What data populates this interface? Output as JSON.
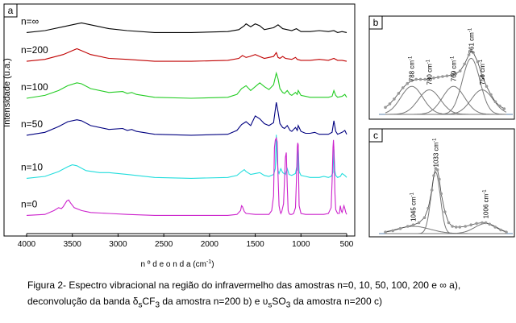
{
  "panels": [
    {
      "label": "a",
      "chart_data": {
        "type": "line",
        "title": "",
        "xlabel": "n º d e  o n d a  (cm",
        "xlabel_exp": "-1",
        "xlabel_end": ")",
        "ylabel": "Intensidade (u.a.)",
        "xlim": [
          4000,
          500
        ],
        "xticks": [
          4000,
          3500,
          3000,
          2500,
          2000,
          1500,
          1000,
          500
        ],
        "series": [
          {
            "name": "n=∞",
            "color": "#000000",
            "offset": 0.92,
            "x": [
              4000,
              3800,
              3600,
              3450,
              3400,
              3300,
              3100,
              2900,
              2600,
              2200,
              1800,
              1680,
              1620,
              1600,
              1550,
              1500,
              1450,
              1400,
              1300,
              1250,
              1200,
              1150,
              1100,
              1050,
              1000,
              900,
              800,
              700,
              640,
              600,
              550,
              500
            ],
            "y": [
              0.0,
              0.02,
              0.06,
              0.09,
              0.1,
              0.08,
              0.04,
              0.02,
              0.0,
              0.0,
              0.01,
              0.03,
              0.07,
              0.09,
              0.06,
              0.09,
              0.07,
              0.03,
              0.05,
              0.08,
              0.04,
              0.03,
              0.02,
              0.04,
              0.01,
              0.01,
              0.02,
              0.01,
              0.02,
              0.0,
              0.01,
              0.0
            ]
          },
          {
            "name": "n=200",
            "color": "#c00000",
            "offset": 0.78,
            "x": [
              4000,
              3800,
              3600,
              3500,
              3450,
              3400,
              3300,
              3100,
              2900,
              2600,
              2200,
              1800,
              1680,
              1640,
              1600,
              1560,
              1500,
              1450,
              1400,
              1350,
              1300,
              1270,
              1250,
              1230,
              1200,
              1170,
              1100,
              1060,
              1040,
              1000,
              900,
              800,
              700,
              640,
              600,
              550,
              500
            ],
            "y": [
              0.0,
              0.02,
              0.07,
              0.11,
              0.13,
              0.11,
              0.07,
              0.03,
              0.02,
              0.0,
              0.0,
              0.01,
              0.03,
              0.06,
              0.04,
              0.05,
              0.07,
              0.05,
              0.03,
              0.04,
              0.05,
              0.09,
              0.04,
              0.03,
              0.05,
              0.03,
              0.02,
              0.04,
              0.02,
              0.01,
              0.01,
              0.02,
              0.01,
              0.03,
              0.01,
              0.01,
              0.0
            ]
          },
          {
            "name": "n=100",
            "color": "#22cc22",
            "offset": 0.6,
            "x": [
              4000,
              3800,
              3650,
              3550,
              3450,
              3400,
              3300,
              3100,
              2950,
              2900,
              2850,
              2800,
              2600,
              2200,
              1800,
              1700,
              1650,
              1600,
              1550,
              1500,
              1450,
              1400,
              1350,
              1300,
              1270,
              1250,
              1230,
              1200,
              1180,
              1150,
              1120,
              1100,
              1060,
              1040,
              1030,
              1000,
              950,
              900,
              850,
              800,
              700,
              660,
              640,
              620,
              600,
              550,
              520,
              500
            ],
            "y": [
              0.0,
              0.03,
              0.08,
              0.13,
              0.16,
              0.15,
              0.1,
              0.06,
              0.07,
              0.05,
              0.06,
              0.04,
              0.01,
              0.0,
              0.01,
              0.04,
              0.1,
              0.13,
              0.08,
              0.12,
              0.16,
              0.12,
              0.09,
              0.14,
              0.26,
              0.2,
              0.1,
              0.06,
              0.05,
              0.08,
              0.04,
              0.03,
              0.06,
              0.04,
              0.08,
              0.03,
              0.02,
              0.01,
              0.01,
              0.01,
              0.01,
              0.02,
              0.08,
              0.03,
              0.01,
              0.02,
              0.04,
              0.01
            ]
          },
          {
            "name": "n=50",
            "color": "#000080",
            "offset": 0.42,
            "x": [
              4000,
              3800,
              3650,
              3550,
              3450,
              3400,
              3300,
              3100,
              2950,
              2900,
              2850,
              2800,
              2600,
              2200,
              1800,
              1700,
              1650,
              1600,
              1550,
              1500,
              1450,
              1400,
              1350,
              1300,
              1270,
              1250,
              1230,
              1200,
              1180,
              1150,
              1120,
              1100,
              1060,
              1040,
              1030,
              1000,
              950,
              900,
              850,
              800,
              700,
              660,
              640,
              620,
              600,
              550,
              520,
              500
            ],
            "y": [
              0.0,
              0.03,
              0.09,
              0.14,
              0.16,
              0.15,
              0.1,
              0.06,
              0.07,
              0.05,
              0.06,
              0.04,
              0.01,
              0.0,
              0.01,
              0.05,
              0.11,
              0.14,
              0.1,
              0.2,
              0.17,
              0.12,
              0.1,
              0.13,
              0.34,
              0.24,
              0.12,
              0.08,
              0.07,
              0.1,
              0.05,
              0.04,
              0.08,
              0.05,
              0.1,
              0.04,
              0.02,
              0.02,
              0.03,
              0.01,
              0.01,
              0.03,
              0.15,
              0.04,
              0.01,
              0.03,
              0.05,
              0.01
            ]
          },
          {
            "name": "n=10",
            "color": "#22dddd",
            "offset": 0.21,
            "x": [
              4000,
              3800,
              3650,
              3550,
              3500,
              3450,
              3350,
              3200,
              3100,
              3000,
              2900,
              2600,
              2200,
              1800,
              1700,
              1650,
              1620,
              1600,
              1550,
              1500,
              1450,
              1400,
              1350,
              1300,
              1280,
              1270,
              1260,
              1250,
              1240,
              1220,
              1200,
              1170,
              1150,
              1130,
              1100,
              1060,
              1050,
              1040,
              1030,
              1020,
              1000,
              950,
              900,
              850,
              800,
              750,
              700,
              670,
              650,
              640,
              630,
              620,
              600,
              570,
              550,
              520,
              500
            ],
            "y": [
              0.0,
              0.02,
              0.07,
              0.12,
              0.14,
              0.13,
              0.08,
              0.06,
              0.06,
              0.05,
              0.04,
              0.01,
              0.0,
              0.01,
              0.03,
              0.07,
              0.09,
              0.07,
              0.04,
              0.05,
              0.06,
              0.03,
              0.02,
              0.04,
              0.1,
              0.45,
              0.18,
              0.08,
              0.05,
              0.1,
              0.06,
              0.04,
              0.1,
              0.04,
              0.03,
              0.05,
              0.1,
              0.08,
              0.32,
              0.07,
              0.03,
              0.02,
              0.01,
              0.01,
              0.01,
              0.02,
              0.01,
              0.02,
              0.06,
              0.3,
              0.08,
              0.03,
              0.01,
              0.02,
              0.05,
              0.03,
              0.01
            ]
          },
          {
            "name": "n=0",
            "color": "#cc22cc",
            "offset": 0.03,
            "x": [
              4000,
              3800,
              3700,
              3650,
              3620,
              3600,
              3560,
              3540,
              3520,
              3480,
              3400,
              3300,
              3100,
              2900,
              2600,
              2200,
              1800,
              1700,
              1660,
              1650,
              1640,
              1620,
              1600,
              1500,
              1400,
              1350,
              1320,
              1300,
              1290,
              1280,
              1270,
              1260,
              1250,
              1240,
              1230,
              1220,
              1210,
              1200,
              1190,
              1170,
              1160,
              1150,
              1140,
              1130,
              1120,
              1100,
              1080,
              1060,
              1050,
              1040,
              1035,
              1030,
              1025,
              1020,
              1000,
              950,
              900,
              850,
              800,
              750,
              700,
              670,
              660,
              650,
              645,
              640,
              635,
              630,
              620,
              600,
              580,
              570,
              560,
              550,
              530,
              520,
              510,
              500
            ],
            "y": [
              0.0,
              0.01,
              0.05,
              0.08,
              0.07,
              0.09,
              0.15,
              0.16,
              0.13,
              0.08,
              0.05,
              0.03,
              0.02,
              0.01,
              0.0,
              0.0,
              0.0,
              0.01,
              0.05,
              0.1,
              0.09,
              0.04,
              0.02,
              0.01,
              0.01,
              0.01,
              0.05,
              0.2,
              0.7,
              0.78,
              0.8,
              0.76,
              0.4,
              0.1,
              0.05,
              0.02,
              0.04,
              0.08,
              0.12,
              0.6,
              0.65,
              0.3,
              0.05,
              0.02,
              0.01,
              0.01,
              0.02,
              0.08,
              0.35,
              0.7,
              0.75,
              0.73,
              0.4,
              0.1,
              0.02,
              0.01,
              0.01,
              0.01,
              0.01,
              0.01,
              0.02,
              0.08,
              0.35,
              0.7,
              0.78,
              0.7,
              0.5,
              0.25,
              0.06,
              0.02,
              0.02,
              0.1,
              0.05,
              0.03,
              0.1,
              0.07,
              0.03,
              0.01
            ]
          }
        ]
      }
    },
    {
      "label": "b",
      "chart_data": {
        "type": "line",
        "title": "",
        "xlim": [
          800,
          745
        ],
        "data_points": {
          "x": [
            800,
            798,
            796,
            794,
            792,
            790,
            788,
            786,
            784,
            782,
            780,
            778,
            776,
            774,
            772,
            770,
            768,
            766,
            764,
            762,
            761,
            760,
            758,
            756,
            754,
            752,
            750,
            748,
            746
          ],
          "y": [
            0.1,
            0.15,
            0.22,
            0.3,
            0.38,
            0.44,
            0.48,
            0.5,
            0.5,
            0.5,
            0.51,
            0.52,
            0.53,
            0.54,
            0.55,
            0.56,
            0.58,
            0.62,
            0.72,
            0.85,
            0.9,
            0.88,
            0.75,
            0.55,
            0.4,
            0.28,
            0.18,
            0.12,
            0.08
          ]
        },
        "components": [
          {
            "name": "788 cm-1",
            "center": 788,
            "height": 0.4,
            "width": 5
          },
          {
            "name": "780 cm-1",
            "center": 780,
            "height": 0.35,
            "width": 5
          },
          {
            "name": "769 cm-1",
            "center": 769,
            "height": 0.4,
            "width": 5
          },
          {
            "name": "761 cm-1",
            "center": 761,
            "height": 0.8,
            "width": 4
          },
          {
            "name": "756 cm-1",
            "center": 756,
            "height": 0.35,
            "width": 5
          }
        ],
        "peak_labels": [
          {
            "base": "788 cm",
            "exp": "-1",
            "x": 788
          },
          {
            "base": "780 cm",
            "exp": "-1",
            "x": 780
          },
          {
            "base": "769 cm",
            "exp": "-1",
            "x": 769
          },
          {
            "base": "761 cm",
            "exp": "-1",
            "x": 761
          },
          {
            "base": "756 cm",
            "exp": "-1",
            "x": 756
          }
        ]
      }
    },
    {
      "label": "c",
      "chart_data": {
        "type": "line",
        "title": "",
        "xlim": [
          1060,
          995
        ],
        "data_points": {
          "x": [
            1060,
            1056,
            1052,
            1048,
            1045,
            1042,
            1039,
            1037,
            1035,
            1034,
            1033,
            1032,
            1031,
            1030,
            1028,
            1026,
            1024,
            1022,
            1020,
            1017,
            1014,
            1011,
            1008,
            1006,
            1004,
            1001,
            998,
            995
          ],
          "y": [
            0.02,
            0.04,
            0.07,
            0.1,
            0.12,
            0.15,
            0.22,
            0.35,
            0.6,
            0.8,
            0.9,
            0.88,
            0.75,
            0.55,
            0.3,
            0.15,
            0.1,
            0.09,
            0.09,
            0.1,
            0.12,
            0.14,
            0.15,
            0.15,
            0.13,
            0.09,
            0.05,
            0.02
          ]
        },
        "components": [
          {
            "name": "1045 cm-1",
            "center": 1045,
            "height": 0.1,
            "width": 9
          },
          {
            "name": "1033 cm-1",
            "center": 1033,
            "height": 0.85,
            "width": 2.5
          },
          {
            "name": "1006 cm-1",
            "center": 1006,
            "height": 0.14,
            "width": 6
          }
        ],
        "peak_labels": [
          {
            "base": "1045 cm",
            "exp": "-1",
            "x": 1045
          },
          {
            "base": "1033 cm",
            "exp": "-1",
            "x": 1033
          },
          {
            "base": "1006 cm",
            "exp": "-1",
            "x": 1006
          }
        ]
      }
    }
  ],
  "caption": {
    "line1": "Figura 2- Espectro vibracional na região do infravermelho das amostras n=0, 10, 50, 100, 200 e ∞ a),",
    "line2_a": "deconvolução da banda δ",
    "line2_sub1": "s",
    "line2_b": "CF",
    "line2_sub2": "3",
    "line2_c": "  da amostra n=200 b) e  υ",
    "line2_sub3": "s",
    "line2_d": "SO",
    "line2_sub4": "3",
    "line2_e": "  da amostra n=200 c)"
  }
}
